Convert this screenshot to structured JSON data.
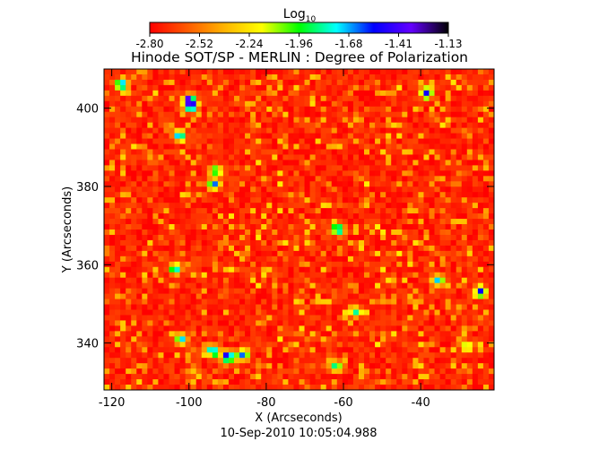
{
  "chart_data": {
    "type": "heatmap",
    "title": "Hinode SOT/SP - MERLIN : Degree of Polarization",
    "xlabel": "X (Arcseconds)",
    "ylabel": "Y (Arcseconds)",
    "xlim": [
      -122,
      -21
    ],
    "ylim": [
      328,
      410
    ],
    "x_ticks": [
      -120,
      -100,
      -80,
      -60,
      -40
    ],
    "y_ticks": [
      340,
      360,
      380,
      400
    ],
    "timestamp": "10-Sep-2010 10:05:04.988",
    "colorbar": {
      "title": "Log",
      "title_subscript": "10",
      "range": [
        -2.8,
        -1.13
      ],
      "tick_labels": [
        "-2.80",
        "-2.52",
        "-2.24",
        "-1.96",
        "-1.68",
        "-1.41",
        "-1.13"
      ],
      "colormap": [
        "#ff0000",
        "#ff5a00",
        "#ffb400",
        "#ffff00",
        "#00ff00",
        "#00ffff",
        "#0000ff",
        "#6400ff",
        "#000000"
      ]
    },
    "hotspots": [
      {
        "x": -117.5,
        "y": 406,
        "value": -1.5
      },
      {
        "x": -100,
        "y": 402,
        "value": -1.2
      },
      {
        "x": -99.5,
        "y": 400.5,
        "value": -1.3
      },
      {
        "x": -102.5,
        "y": 393,
        "value": -1.6
      },
      {
        "x": -93,
        "y": 384,
        "value": -1.8
      },
      {
        "x": -93.5,
        "y": 380.5,
        "value": -1.6
      },
      {
        "x": -38.5,
        "y": 404,
        "value": -1.5
      },
      {
        "x": -61.5,
        "y": 369,
        "value": -1.6
      },
      {
        "x": -103.5,
        "y": 359,
        "value": -1.7
      },
      {
        "x": -35.5,
        "y": 356,
        "value": -1.7
      },
      {
        "x": -24.5,
        "y": 353,
        "value": -1.5
      },
      {
        "x": -57,
        "y": 348,
        "value": -1.8
      },
      {
        "x": -102,
        "y": 341,
        "value": -1.7
      },
      {
        "x": -94,
        "y": 338,
        "value": -1.6
      },
      {
        "x": -90,
        "y": 336.5,
        "value": -1.3
      },
      {
        "x": -86,
        "y": 337,
        "value": -1.6
      },
      {
        "x": -62,
        "y": 334,
        "value": -1.8
      },
      {
        "x": -28,
        "y": 339,
        "value": -1.9
      }
    ],
    "background_level": -2.72
  }
}
